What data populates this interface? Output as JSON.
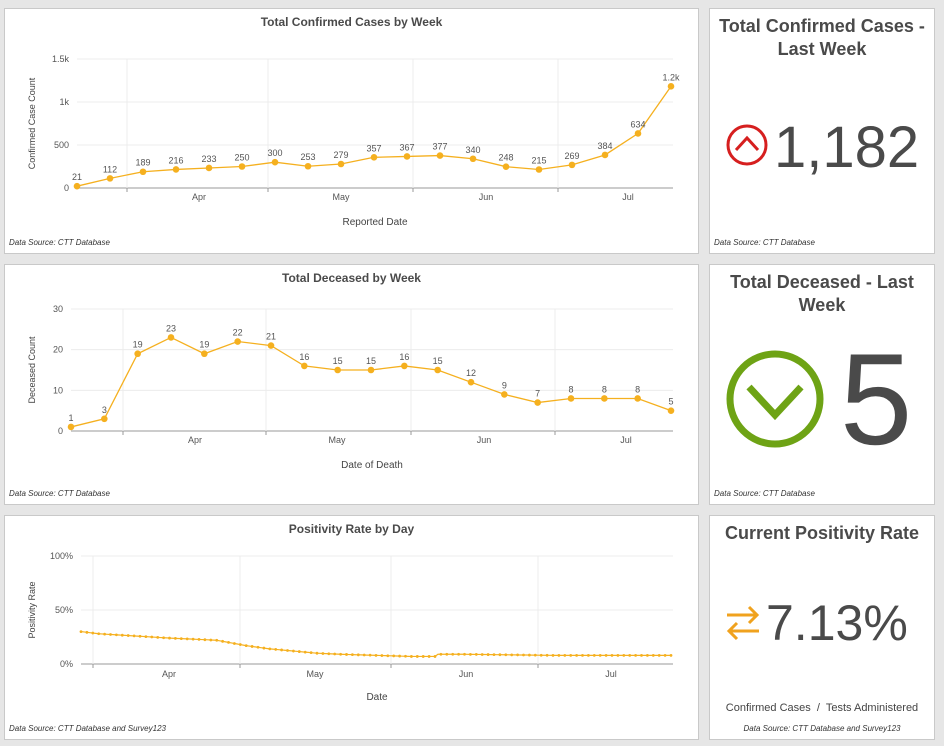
{
  "colors": {
    "series": "#f5b01f",
    "up_red": "#d61f1f",
    "down_green": "#6ea315",
    "swap_orange": "#f0a21e",
    "text_dark": "#4a4a4a"
  },
  "chart_data": [
    {
      "type": "line",
      "title": "Total Confirmed Cases by Week",
      "xlabel": "Reported Date",
      "ylabel": "Confirmed Case Count",
      "ylim": [
        0,
        1500
      ],
      "yticks": [
        0,
        500,
        1000,
        1500
      ],
      "ytick_labels": [
        "0",
        "500",
        "1k",
        "1.5k"
      ],
      "x_month_labels": [
        "Apr",
        "May",
        "Jun",
        "Jul"
      ],
      "values": [
        21,
        112,
        189,
        216,
        233,
        250,
        300,
        253,
        279,
        357,
        367,
        377,
        340,
        248,
        215,
        269,
        384,
        634,
        1182
      ],
      "data_labels": [
        "21",
        "112",
        "189",
        "216",
        "233",
        "250",
        "300",
        "253",
        "279",
        "357",
        "367",
        "377",
        "340",
        "248",
        "215",
        "269",
        "384",
        "634",
        "1.2k"
      ],
      "source": "Data Source: CTT Database"
    },
    {
      "type": "line",
      "title": "Total Deceased by Week",
      "xlabel": "Date of Death",
      "ylabel": "Deceased Count",
      "ylim": [
        0,
        30
      ],
      "yticks": [
        0,
        10,
        20,
        30
      ],
      "ytick_labels": [
        "0",
        "10",
        "20",
        "30"
      ],
      "x_month_labels": [
        "Apr",
        "May",
        "Jun",
        "Jul"
      ],
      "values": [
        1,
        3,
        19,
        23,
        19,
        22,
        21,
        16,
        15,
        15,
        16,
        15,
        12,
        9,
        7,
        8,
        8,
        8,
        5
      ],
      "data_labels": [
        "1",
        "3",
        "19",
        "23",
        "19",
        "22",
        "21",
        "16",
        "15",
        "15",
        "16",
        "15",
        "12",
        "9",
        "7",
        "8",
        "8",
        "8",
        "5"
      ],
      "source": "Data Source: CTT Database"
    },
    {
      "type": "line",
      "title": "Positivity Rate by Day",
      "xlabel": "Date",
      "ylabel": "Positivity Rate",
      "ylim": [
        0,
        100
      ],
      "yticks": [
        0,
        50,
        100
      ],
      "ytick_labels": [
        "0%",
        "50%",
        "100%"
      ],
      "x_month_labels": [
        "Apr",
        "May",
        "Jun",
        "Jul"
      ],
      "anchors": [
        [
          0,
          30
        ],
        [
          6,
          28
        ],
        [
          18,
          26
        ],
        [
          30,
          24
        ],
        [
          46,
          22
        ],
        [
          56,
          17
        ],
        [
          64,
          14
        ],
        [
          72,
          12
        ],
        [
          80,
          10
        ],
        [
          88,
          9
        ],
        [
          100,
          8
        ],
        [
          112,
          7
        ],
        [
          120,
          7
        ],
        [
          121,
          9
        ],
        [
          130,
          9
        ],
        [
          145,
          8.5
        ],
        [
          160,
          8
        ],
        [
          175,
          8
        ],
        [
          190,
          8
        ],
        [
          200,
          8
        ]
      ],
      "n_points": 200,
      "source": "Data Source: CTT Database and Survey123"
    }
  ],
  "indicators": {
    "cases": {
      "title": "Total Confirmed Cases - Last Week",
      "value": "1,182",
      "source": "Data Source: CTT Database"
    },
    "deceased": {
      "title": "Total Deceased - Last Week",
      "value": "5",
      "source": "Data Source: CTT Database"
    },
    "positivity": {
      "title": "Current Positivity Rate",
      "value": "7.13%",
      "subtitle": "Confirmed Cases  /  Tests Administered",
      "source": "Data Source: CTT Database and Survey123"
    }
  }
}
